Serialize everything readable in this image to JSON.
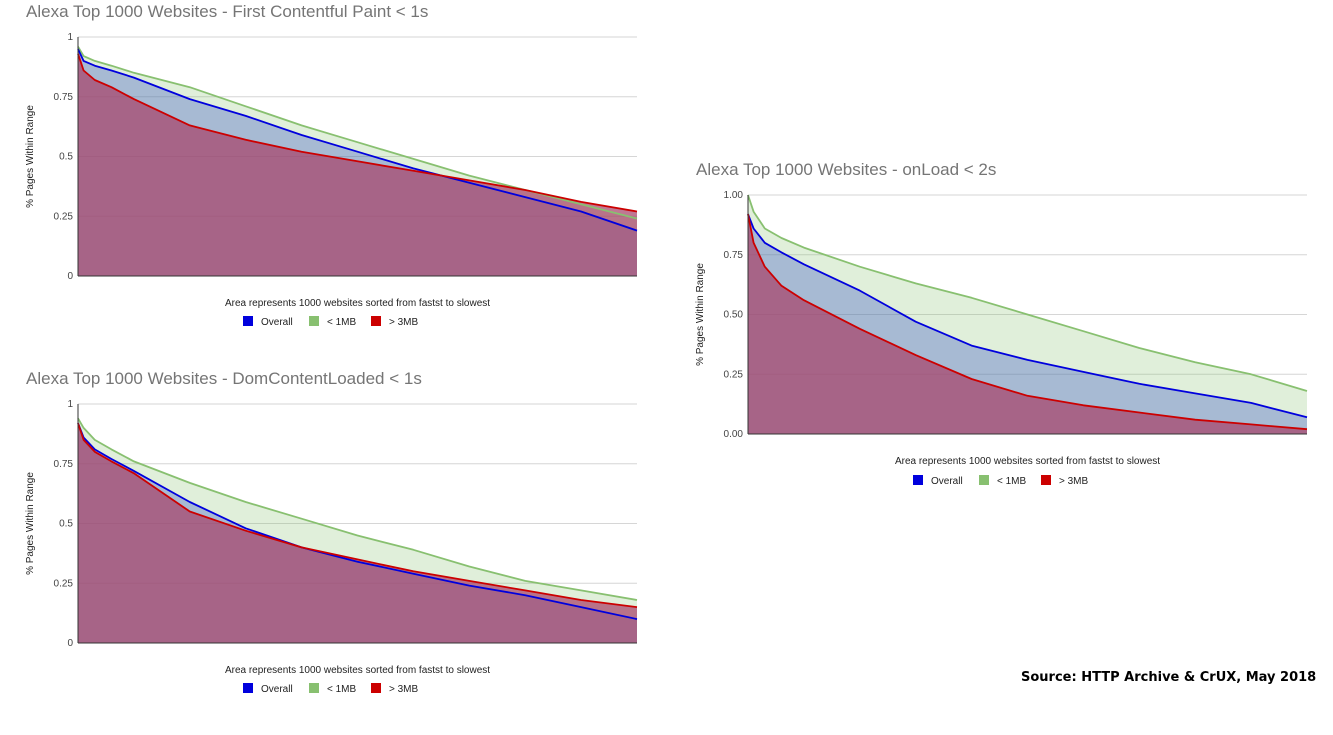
{
  "source": "Source: HTTP Archive & CrUX, May 2018",
  "colors": {
    "overall": "#0000dd",
    "small": "#88c070",
    "large": "#cc0000",
    "area_fill": "#a8436a",
    "gridline": "#d6d6d6",
    "axis": "#333333"
  },
  "chart_data": [
    {
      "type": "area",
      "title": "Alexa Top 1000 Websites - First Contentful Paint < 1s",
      "xlabel": "Area represents 1000 websites sorted from fastst to slowest",
      "ylabel": "% Pages Within Range",
      "ylim": [
        0,
        1
      ],
      "ytick_labels": [
        "0",
        "0.25",
        "0.5",
        "0.75",
        "1"
      ],
      "legend": {
        "position": "bottom",
        "entries": [
          "Overall",
          "< 1MB",
          "> 3MB"
        ]
      },
      "x": [
        0,
        1,
        3,
        6,
        10,
        20,
        30,
        40,
        50,
        60,
        70,
        80,
        90,
        100
      ],
      "series": [
        {
          "name": "Overall",
          "color": "#0000dd",
          "values": [
            0.95,
            0.9,
            0.88,
            0.86,
            0.83,
            0.74,
            0.67,
            0.59,
            0.52,
            0.45,
            0.39,
            0.33,
            0.27,
            0.19
          ]
        },
        {
          "name": "< 1MB",
          "color": "#88c070",
          "values": [
            0.96,
            0.92,
            0.9,
            0.88,
            0.85,
            0.79,
            0.71,
            0.63,
            0.56,
            0.49,
            0.42,
            0.36,
            0.3,
            0.24
          ]
        },
        {
          "name": "> 3MB",
          "color": "#cc0000",
          "values": [
            0.93,
            0.86,
            0.82,
            0.79,
            0.74,
            0.63,
            0.57,
            0.52,
            0.48,
            0.44,
            0.4,
            0.36,
            0.31,
            0.27
          ]
        }
      ]
    },
    {
      "type": "area",
      "title": "Alexa Top 1000 Websites - DomContentLoaded < 1s",
      "xlabel": "Area represents 1000 websites sorted from fastst to slowest",
      "ylabel": "% Pages Within Range",
      "ylim": [
        0,
        1
      ],
      "ytick_labels": [
        "0",
        "0.25",
        "0.5",
        "0.75",
        "1"
      ],
      "legend": {
        "position": "bottom",
        "entries": [
          "Overall",
          "< 1MB",
          "> 3MB"
        ]
      },
      "x": [
        0,
        1,
        3,
        6,
        10,
        20,
        30,
        40,
        50,
        60,
        70,
        80,
        90,
        100
      ],
      "series": [
        {
          "name": "Overall",
          "color": "#0000dd",
          "values": [
            0.92,
            0.86,
            0.81,
            0.77,
            0.72,
            0.59,
            0.48,
            0.4,
            0.34,
            0.29,
            0.24,
            0.2,
            0.15,
            0.1
          ]
        },
        {
          "name": "< 1MB",
          "color": "#88c070",
          "values": [
            0.94,
            0.9,
            0.85,
            0.81,
            0.76,
            0.67,
            0.59,
            0.52,
            0.45,
            0.39,
            0.32,
            0.26,
            0.22,
            0.18
          ]
        },
        {
          "name": "> 3MB",
          "color": "#cc0000",
          "values": [
            0.92,
            0.85,
            0.8,
            0.76,
            0.71,
            0.55,
            0.47,
            0.4,
            0.35,
            0.3,
            0.26,
            0.22,
            0.18,
            0.15
          ]
        }
      ]
    },
    {
      "type": "area",
      "title": "Alexa Top 1000 Websites - onLoad < 2s",
      "xlabel": "Area represents 1000 websites sorted from fastst to slowest",
      "ylabel": "% Pages Within Range",
      "ylim": [
        0,
        1
      ],
      "ytick_labels": [
        "0.00",
        "0.25",
        "0.50",
        "0.75",
        "1.00"
      ],
      "legend": {
        "position": "bottom",
        "entries": [
          "Overall",
          "< 1MB",
          "> 3MB"
        ]
      },
      "x": [
        0,
        1,
        3,
        6,
        10,
        20,
        30,
        40,
        50,
        60,
        70,
        80,
        90,
        100
      ],
      "series": [
        {
          "name": "Overall",
          "color": "#0000dd",
          "values": [
            0.92,
            0.86,
            0.8,
            0.76,
            0.71,
            0.6,
            0.47,
            0.37,
            0.31,
            0.26,
            0.21,
            0.17,
            0.13,
            0.07
          ]
        },
        {
          "name": "< 1MB",
          "color": "#88c070",
          "values": [
            1.0,
            0.93,
            0.86,
            0.82,
            0.78,
            0.7,
            0.63,
            0.57,
            0.5,
            0.43,
            0.36,
            0.3,
            0.25,
            0.18
          ]
        },
        {
          "name": "> 3MB",
          "color": "#cc0000",
          "values": [
            0.92,
            0.8,
            0.7,
            0.62,
            0.56,
            0.44,
            0.33,
            0.23,
            0.16,
            0.12,
            0.09,
            0.06,
            0.04,
            0.02
          ]
        }
      ]
    }
  ]
}
